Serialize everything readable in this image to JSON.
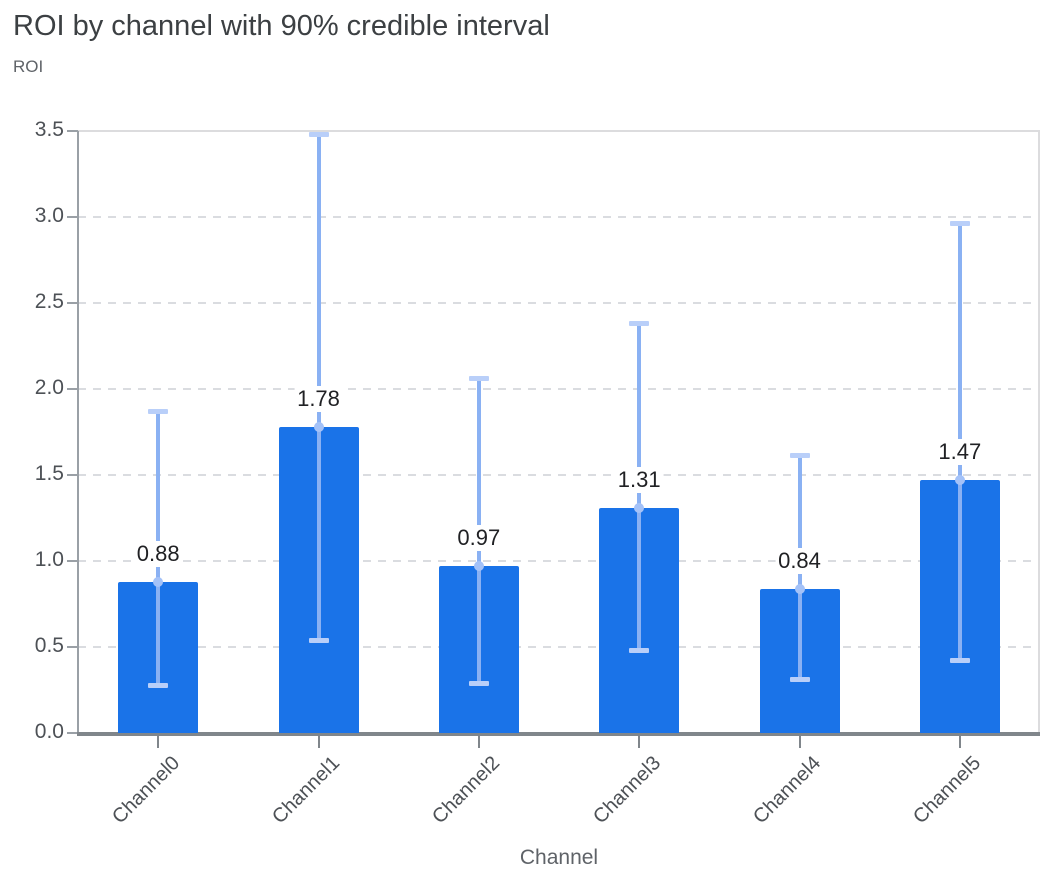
{
  "chart_data": {
    "type": "bar",
    "title": "ROI by channel with 90% credible interval",
    "ylabel": "ROI",
    "xlabel": "Channel",
    "categories": [
      "Channel0",
      "Channel1",
      "Channel2",
      "Channel3",
      "Channel4",
      "Channel5"
    ],
    "values": [
      0.88,
      1.78,
      0.97,
      1.31,
      0.84,
      1.47
    ],
    "value_labels": [
      "0.88",
      "1.78",
      "0.97",
      "1.31",
      "0.84",
      "1.47"
    ],
    "error_low": [
      0.27,
      0.53,
      0.28,
      0.47,
      0.3,
      0.41
    ],
    "error_high": [
      1.88,
      3.49,
      2.07,
      2.39,
      1.62,
      2.97
    ],
    "ylim": [
      0,
      3.5
    ],
    "yticks": [
      "0.0",
      "0.5",
      "1.0",
      "1.5",
      "2.0",
      "2.5",
      "3.0",
      "3.5"
    ],
    "grid": "horizontal-dashed",
    "legend": "none",
    "colors": {
      "bar": "#1a73e8",
      "error_line": "#8ab1f3",
      "error_cap": "#b9cff9",
      "marker": "#a4c2f8",
      "grid": "#dadce0",
      "border_light": "#dcdcde",
      "axis_left": "#9aa0a6",
      "axis_bottom": "#80868b",
      "title_text": "#3c4043",
      "tick_text": "#4d5156",
      "muted_text": "#5f6368",
      "value_text": "#202124"
    }
  }
}
